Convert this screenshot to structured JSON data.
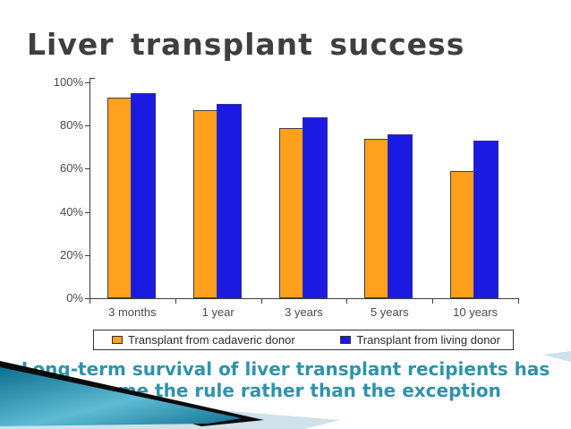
{
  "slide": {
    "title": "Liver transplant success",
    "caption": {
      "line1": "Long-term survival of liver transplant recipients has",
      "line2": "become the rule rather than the exception"
    }
  },
  "chart_data": {
    "type": "bar",
    "title": "Liver transplant success",
    "categories": [
      "3 months",
      "1 year",
      "3 years",
      "5 years",
      "10 years"
    ],
    "series": [
      {
        "key": "cadaveric",
        "name": "Transplant from cadaveric donor",
        "color": "#FFA01E",
        "border": "#404040",
        "values": [
          93,
          87,
          79,
          74,
          59
        ]
      },
      {
        "key": "living",
        "name": "Transplant from living donor",
        "color": "#1A1AE0",
        "border": "#2F2F9E",
        "values": [
          95,
          90,
          84,
          76,
          73
        ]
      }
    ],
    "y_ticks": [
      "0%",
      "20%",
      "40%",
      "60%",
      "80%",
      "100%"
    ],
    "ylim": [
      0,
      100
    ],
    "xlabel": "",
    "ylabel": "",
    "grid": false,
    "legend_position": "bottom"
  },
  "colors": {
    "title_text": "#3F3F3F",
    "caption_text": "#2E93AC",
    "axis": "#3C3C3C",
    "tick_label": "#4A4A4A",
    "legend_text": "#2B2B2B",
    "legend_border": "#333333",
    "deco_pale": "#CFE1EB",
    "deco_black": "#0B0B0B",
    "deco_teal_dark": "#0C7090",
    "deco_teal_light": "#5FBBD3"
  }
}
